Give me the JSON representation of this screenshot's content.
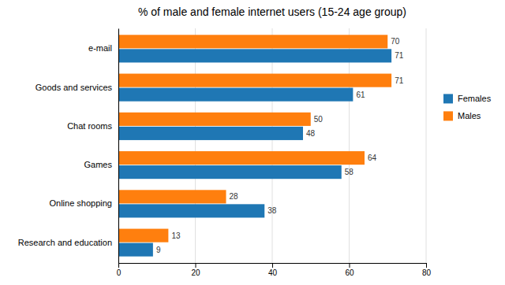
{
  "chart_data": {
    "type": "bar",
    "orientation": "horizontal",
    "title": "% of male and female internet users (15-24 age group)",
    "categories": [
      "e-mail",
      "Goods and services",
      "Chat rooms",
      "Games",
      "Online shopping",
      "Research and education"
    ],
    "series": [
      {
        "name": "Females",
        "values": [
          71,
          61,
          48,
          58,
          38,
          9
        ]
      },
      {
        "name": "Males",
        "values": [
          70,
          71,
          50,
          64,
          28,
          13
        ]
      }
    ],
    "xlim": [
      0,
      80
    ],
    "xticks": [
      0,
      20,
      40,
      60,
      80
    ],
    "grid": true,
    "data_labels": true,
    "legend": "right"
  }
}
